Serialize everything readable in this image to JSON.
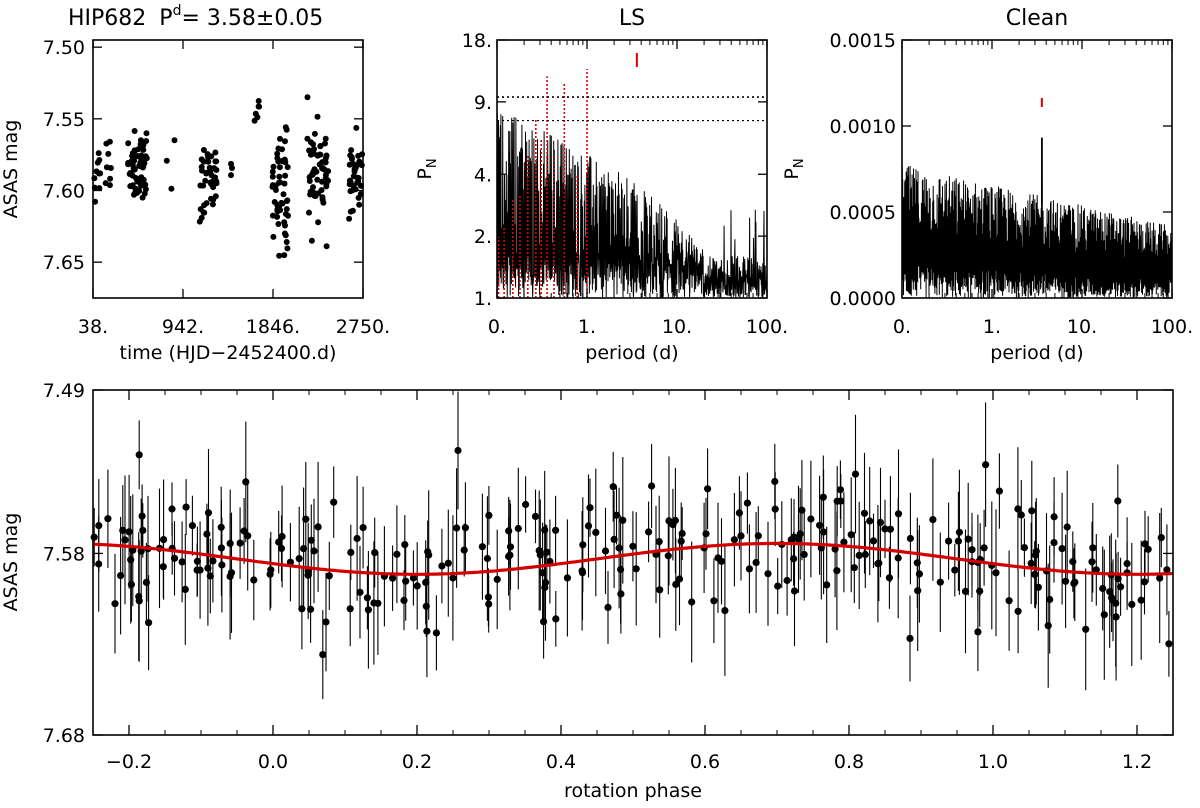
{
  "chart_data": [
    {
      "id": "lightcurve",
      "type": "scatter",
      "title_parts": {
        "name": "HIP682",
        "p": "P",
        "sup": "d",
        "value": "= 3.58±0.05"
      },
      "xlabel": "time (HJD−2452400.d)",
      "ylabel": "ASAS mag",
      "xlim": [
        38,
        2750
      ],
      "ylim": [
        7.675,
        7.495
      ],
      "xticks": [
        38,
        942,
        1846,
        2750
      ],
      "xtick_labels": [
        "38.",
        "942.",
        "1846.",
        "2750."
      ],
      "yticks": [
        7.5,
        7.55,
        7.6,
        7.65
      ],
      "ytick_labels": [
        "7.50",
        "7.55",
        "7.60",
        "7.65"
      ],
      "seasons": [
        {
          "t0": 40,
          "t1": 110,
          "n": 10,
          "mean": 7.593,
          "sd": 0.012
        },
        {
          "t0": 150,
          "t1": 220,
          "n": 8,
          "mean": 7.584,
          "sd": 0.012
        },
        {
          "t0": 390,
          "t1": 580,
          "n": 60,
          "mean": 7.585,
          "sd": 0.011
        },
        {
          "t0": 730,
          "t1": 900,
          "n": 3,
          "mean": 7.58,
          "sd": 0.01
        },
        {
          "t0": 1110,
          "t1": 1280,
          "n": 40,
          "mean": 7.592,
          "sd": 0.014
        },
        {
          "t0": 1420,
          "t1": 1470,
          "n": 3,
          "mean": 7.582,
          "sd": 0.005
        },
        {
          "t0": 1660,
          "t1": 1720,
          "n": 6,
          "mean": 7.545,
          "sd": 0.01
        },
        {
          "t0": 1840,
          "t1": 2000,
          "n": 55,
          "mean": 7.602,
          "sd": 0.02
        },
        {
          "t0": 2190,
          "t1": 2400,
          "n": 60,
          "mean": 7.59,
          "sd": 0.017
        },
        {
          "t0": 2610,
          "t1": 2750,
          "n": 35,
          "mean": 7.587,
          "sd": 0.012
        }
      ],
      "scale": "linear"
    },
    {
      "id": "ls",
      "type": "line",
      "title": "LS",
      "xlabel": "period (d)",
      "ylabel": "P",
      "ylabel_sub": "N",
      "x_scale": "log",
      "y_scale": "log",
      "xlim": [
        0.1,
        100
      ],
      "ylim": [
        1,
        18
      ],
      "xticks": [
        0.1,
        1,
        10,
        100
      ],
      "xtick_labels": [
        "0.",
        "1.",
        "10.",
        "100."
      ],
      "yticks": [
        1,
        2,
        4,
        9,
        18
      ],
      "ytick_labels": [
        "1.",
        "2.",
        "4.",
        "9.",
        "18."
      ],
      "hlines": [
        9.5,
        7.3
      ],
      "marker_period": 3.58,
      "red_peaks": [
        {
          "x": 0.104,
          "y": 2.0
        },
        {
          "x": 0.12,
          "y": 2.2
        },
        {
          "x": 0.15,
          "y": 3.0
        },
        {
          "x": 0.18,
          "y": 3.2
        },
        {
          "x": 0.22,
          "y": 5.0
        },
        {
          "x": 0.27,
          "y": 7.5
        },
        {
          "x": 0.31,
          "y": 6.0
        },
        {
          "x": 0.36,
          "y": 12.0
        },
        {
          "x": 0.43,
          "y": 5.0
        },
        {
          "x": 0.56,
          "y": 11.0
        },
        {
          "x": 0.78,
          "y": 4.0
        },
        {
          "x": 1.0,
          "y": 13.0
        }
      ],
      "noise": {
        "x0": 0.1,
        "x1": 100,
        "level_hi": 8.5,
        "level_lo": 2.0,
        "tail_start": 20
      }
    },
    {
      "id": "clean",
      "type": "line",
      "title": "Clean",
      "xlabel": "period (d)",
      "ylabel": "P",
      "ylabel_sub": "N",
      "x_scale": "log",
      "xlim": [
        0.1,
        100
      ],
      "ylim": [
        0,
        0.0015
      ],
      "xticks": [
        0.1,
        1,
        10,
        100
      ],
      "xtick_labels": [
        "0.",
        "1.",
        "10.",
        "100."
      ],
      "yticks": [
        0,
        0.0005,
        0.001,
        0.0015
      ],
      "ytick_labels": [
        "0.0000",
        "0.0005",
        "0.0010",
        "0.0015"
      ],
      "marker_period": 3.58,
      "peak": {
        "x": 3.58,
        "y": 0.00093
      },
      "noise": {
        "level_start": 0.00078,
        "level_end": 0.00042
      }
    },
    {
      "id": "phased",
      "type": "scatter",
      "xlabel": "rotation phase",
      "ylabel": "ASAS mag",
      "xlim": [
        -0.25,
        1.25
      ],
      "ylim": [
        7.68,
        7.49
      ],
      "xticks": [
        -0.2,
        0.0,
        0.2,
        0.4,
        0.6,
        0.8,
        1.0,
        1.2
      ],
      "xtick_labels": [
        "−0.2",
        "0.0",
        "0.2",
        "0.4",
        "0.6",
        "0.8",
        "1.0",
        "1.2"
      ],
      "yticks": [
        7.49,
        7.58,
        7.68
      ],
      "ytick_labels": [
        "7.49",
        "7.58",
        "7.68"
      ],
      "fit": {
        "mean": 7.583,
        "amplitude": 0.0085,
        "phase_of_max_brightness": 0.7,
        "color": "#d40000"
      },
      "points_per_unit_phase": 190,
      "point_scatter": 0.018,
      "errorbar_typical": 0.024
    }
  ]
}
